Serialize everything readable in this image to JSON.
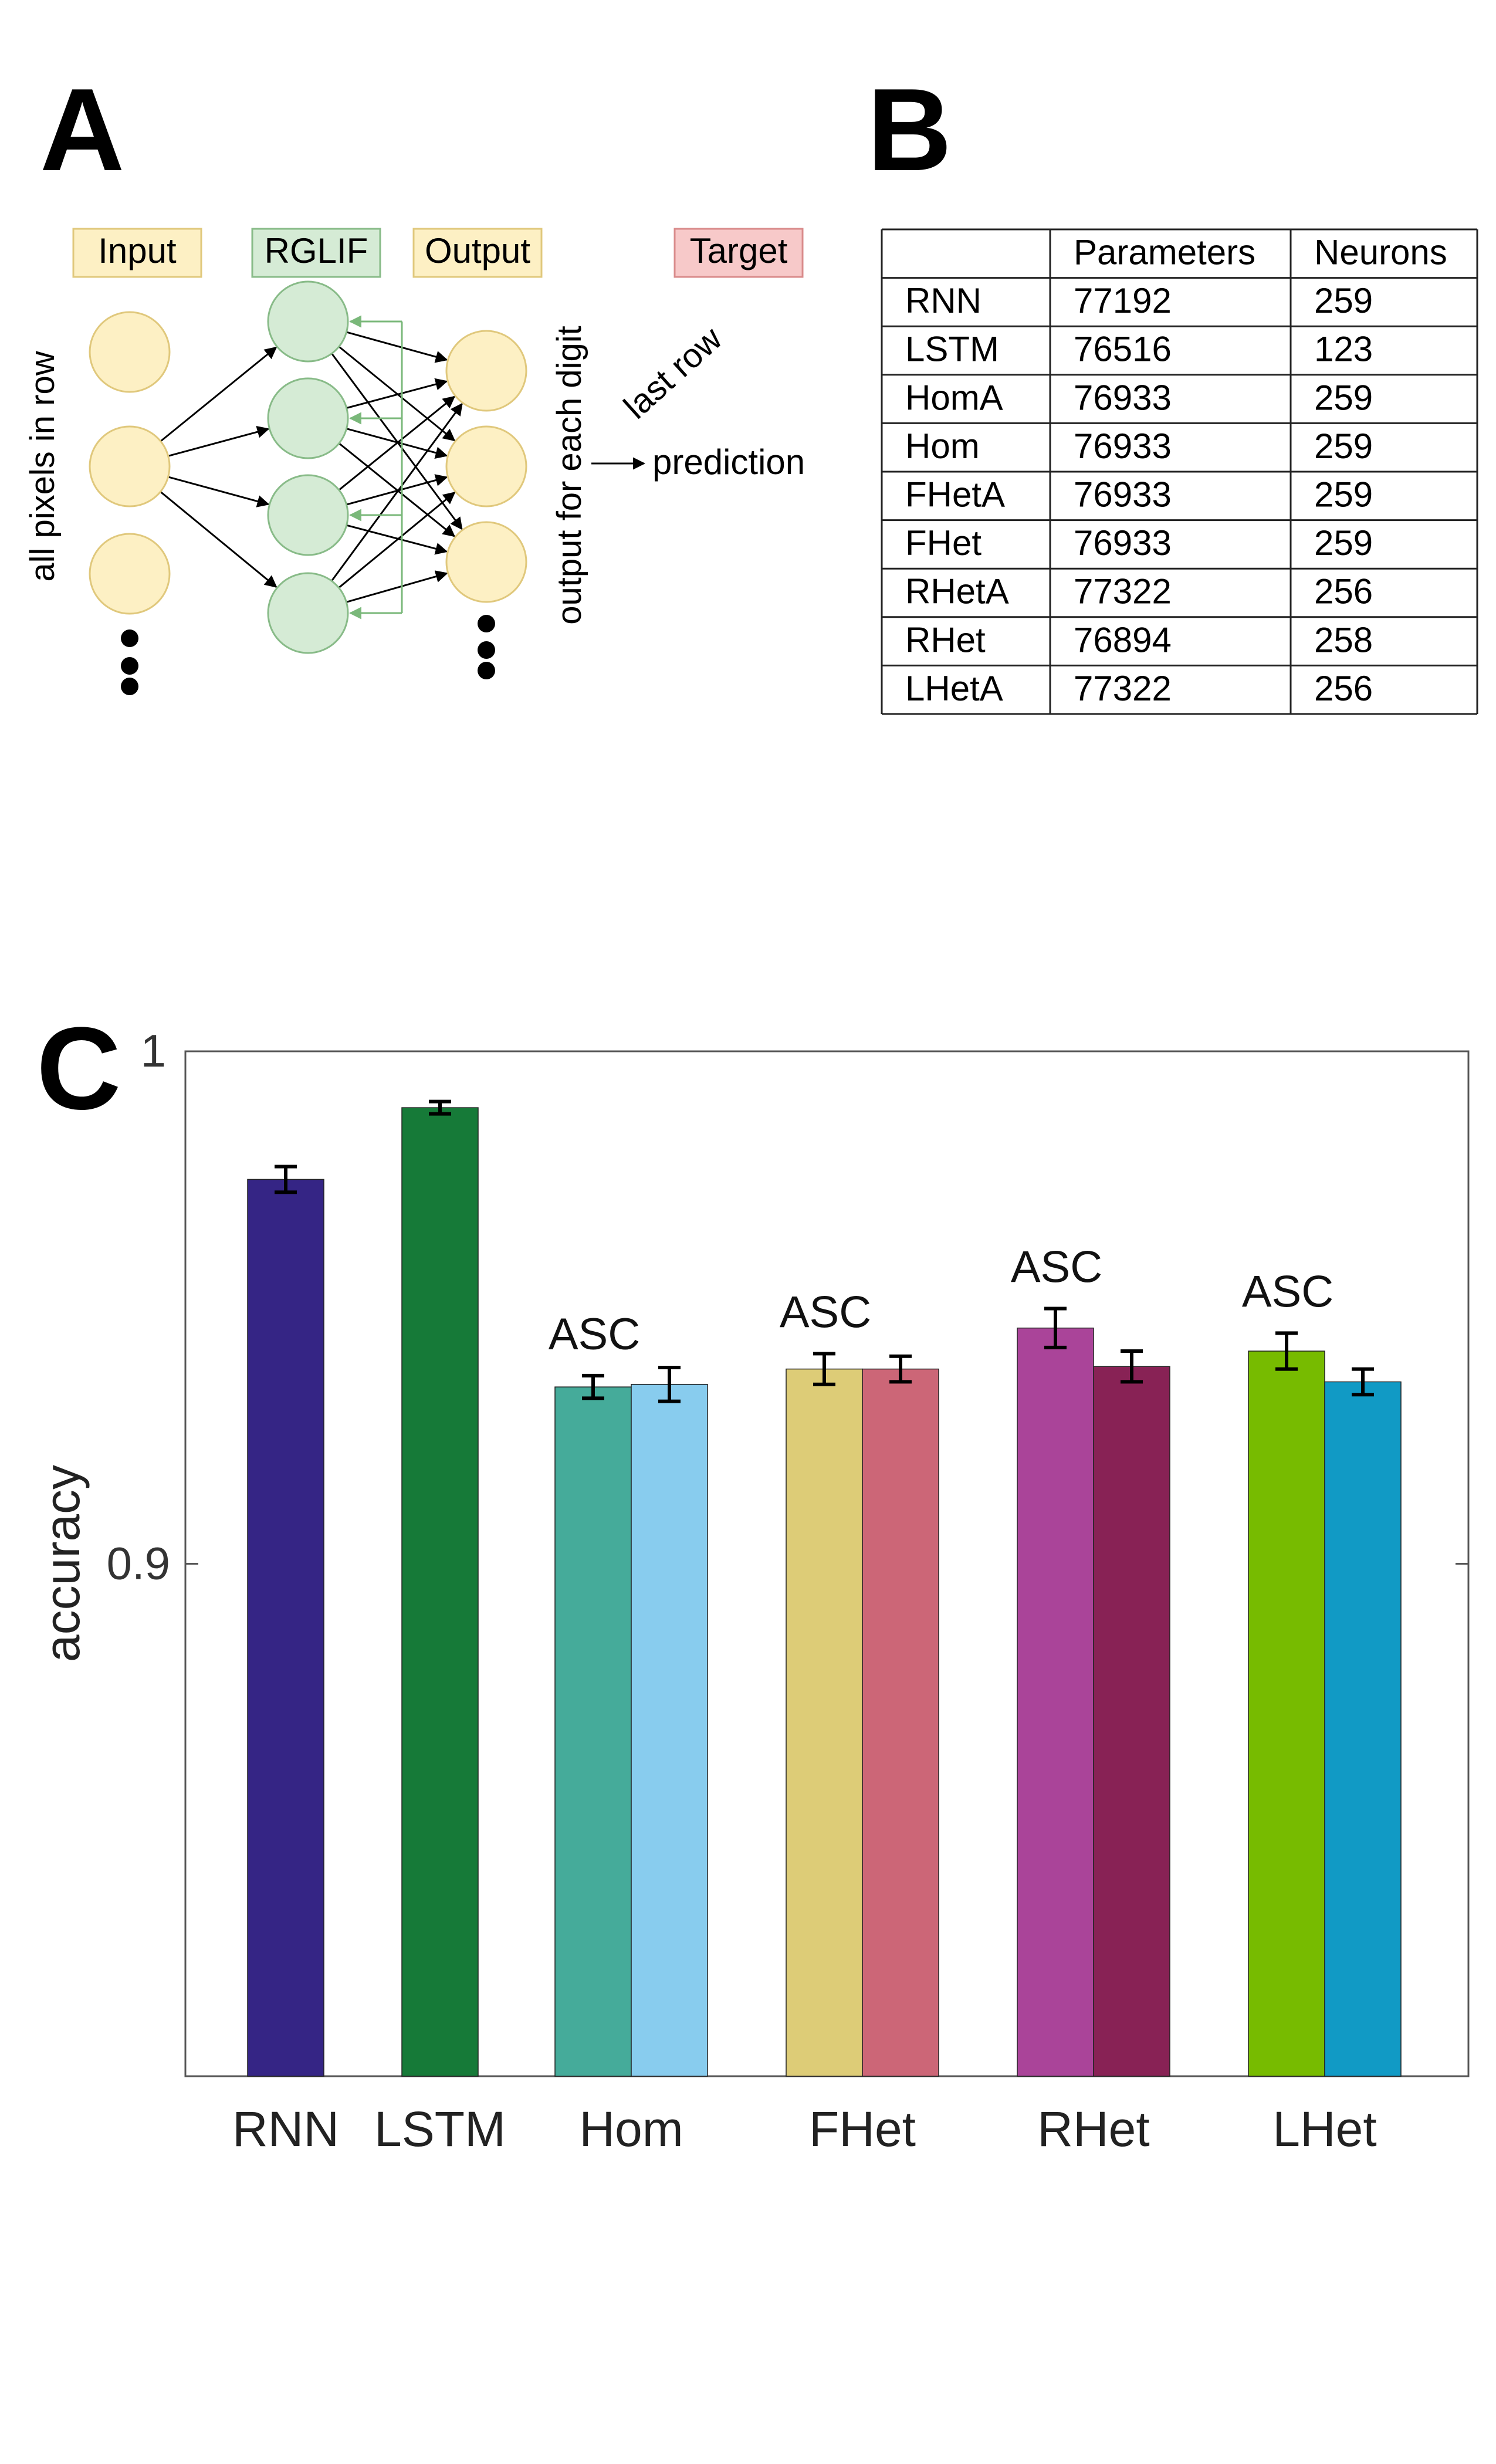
{
  "panels": {
    "a": "A",
    "b": "B",
    "c": "C"
  },
  "diagram": {
    "input_label": "Input",
    "hidden_label": "RGLIF",
    "output_label": "Output",
    "target_label": "Target",
    "input_axis_label": "all pixels in row",
    "output_axis_label": "output for each digit",
    "last_row_label": "last row",
    "prediction_label": "prediction",
    "colors": {
      "input_fill": "#fdf0c4",
      "input_stroke": "#e0c87c",
      "hidden_fill": "#d5ebd5",
      "hidden_stroke": "#88bb88",
      "target_fill": "#f7c9c9",
      "target_stroke": "#d98b8b",
      "recurrent": "#7ab87a"
    }
  },
  "table": {
    "headers": [
      "",
      "Parameters",
      "Neurons"
    ],
    "rows": [
      [
        "RNN",
        "77192",
        "259"
      ],
      [
        "LSTM",
        "76516",
        "123"
      ],
      [
        "HomA",
        "76933",
        "259"
      ],
      [
        "Hom",
        "76933",
        "259"
      ],
      [
        "FHetA",
        "76933",
        "259"
      ],
      [
        "FHet",
        "76933",
        "259"
      ],
      [
        "RHetA",
        "77322",
        "256"
      ],
      [
        "RHet",
        "76894",
        "258"
      ],
      [
        "LHetA",
        "77322",
        "256"
      ]
    ]
  },
  "chart_data": {
    "type": "bar",
    "ylabel": "accuracy",
    "ylim": [
      0.8,
      1.0
    ],
    "yticks": [
      0.9,
      1.0
    ],
    "ytick_labels": [
      "0.9",
      "1"
    ],
    "groups": [
      "RNN",
      "LSTM",
      "Hom",
      "FHet",
      "RHet",
      "LHet"
    ],
    "bars": [
      {
        "group": "RNN",
        "value": 0.975,
        "error": 0.0025,
        "color": "#352585"
      },
      {
        "group": "LSTM",
        "value": 0.989,
        "error": 0.0012,
        "color": "#167a38"
      },
      {
        "group": "Hom",
        "value": 0.9345,
        "error": 0.0022,
        "color": "#45ab9a",
        "annotation": "ASC"
      },
      {
        "group": "Hom",
        "value": 0.935,
        "error": 0.0033,
        "color": "#88ccee"
      },
      {
        "group": "FHet",
        "value": 0.938,
        "error": 0.003,
        "color": "#ddcc77",
        "annotation": "ASC"
      },
      {
        "group": "FHet",
        "value": 0.938,
        "error": 0.0025,
        "color": "#cc6677"
      },
      {
        "group": "RHet",
        "value": 0.946,
        "error": 0.0038,
        "color": "#aa4499",
        "annotation": "ASC"
      },
      {
        "group": "RHet",
        "value": 0.9385,
        "error": 0.003,
        "color": "#882255"
      },
      {
        "group": "LHet",
        "value": 0.9415,
        "error": 0.0035,
        "color": "#77bb00",
        "annotation": "ASC"
      },
      {
        "group": "LHet",
        "value": 0.9355,
        "error": 0.0025,
        "color": "#119ac5"
      }
    ]
  }
}
